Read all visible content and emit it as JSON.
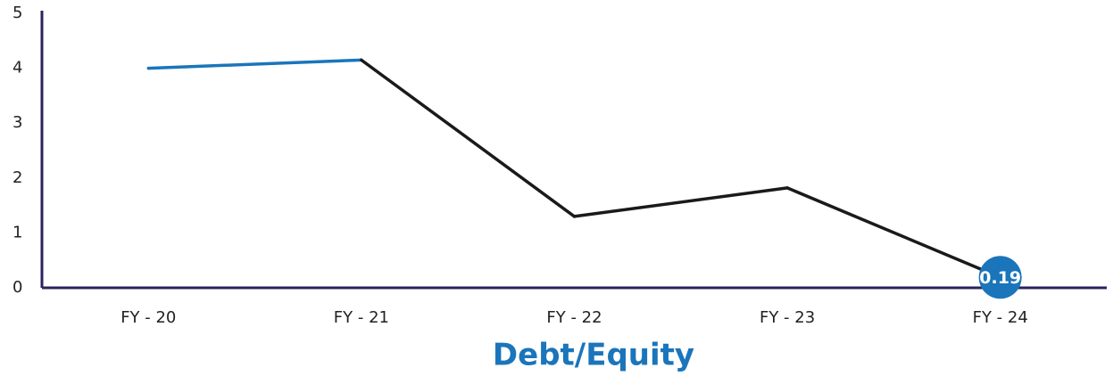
{
  "chart_data": {
    "type": "line",
    "title": "Debt/Equity",
    "categories": [
      "FY - 20",
      "FY - 21",
      "FY - 22",
      "FY - 23",
      "FY - 24"
    ],
    "values": [
      4.0,
      4.15,
      1.3,
      1.82,
      0.19
    ],
    "segment_colors": [
      "#1a75bb",
      "#1a1a1a",
      "#1a1a1a",
      "#1a1a1a"
    ],
    "data_label_index": 4,
    "data_label_color": "#1a75bb",
    "axis_color": "#2b2361",
    "title_color": "#1a75bb",
    "ylim": [
      0,
      5
    ],
    "yticks": [
      0,
      1,
      2,
      3,
      4,
      5
    ],
    "grid": false
  }
}
